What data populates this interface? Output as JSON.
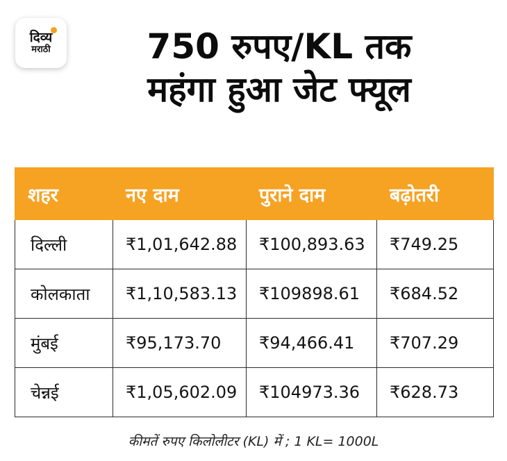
{
  "logo": {
    "line1": "दिव्य",
    "line2": "मराठी"
  },
  "headline": {
    "line1": "750 रुपए/KL तक",
    "line2": "महंगा हुआ जेट फ्यूल"
  },
  "table": {
    "headers": [
      "शहर",
      "नए दाम",
      "पुराने दाम",
      "बढ़ोतरी"
    ],
    "rows": [
      {
        "city": "दिल्ली",
        "new_price": "₹1,01,642.88",
        "old_price": "₹100,893.63",
        "increase": "₹749.25"
      },
      {
        "city": "कोलकाता",
        "new_price": "₹1,10,583.13",
        "old_price": "₹109898.61",
        "increase": "₹684.52"
      },
      {
        "city": "मुंबई",
        "new_price": "₹95,173.70",
        "old_price": "₹94,466.41",
        "increase": "₹707.29"
      },
      {
        "city": "चेन्नई",
        "new_price": "₹1,05,602.09",
        "old_price": "₹104973.36",
        "increase": "₹628.73"
      }
    ]
  },
  "footnote": "कीमतें रुपए किलोलीटर (KL) में ; 1 KL= 1000L",
  "colors": {
    "header_bg": "#f6a223",
    "header_text": "#ffffff",
    "logo_accent": "#f5a01e"
  }
}
